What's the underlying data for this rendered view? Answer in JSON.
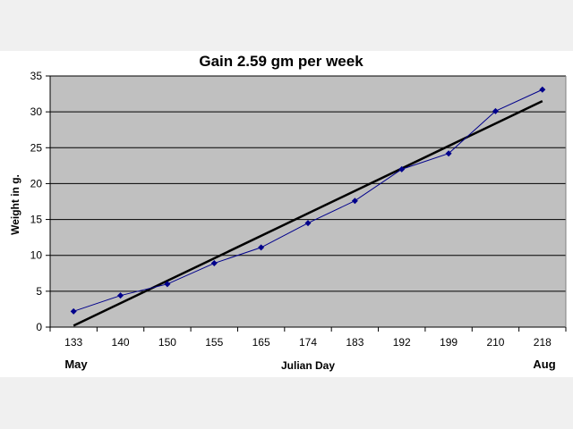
{
  "chart_data": {
    "type": "line",
    "title": "Gain 2.59 gm per week",
    "xlabel": "Julian Day",
    "ylabel": "Weight in g.",
    "categories": [
      "133",
      "140",
      "150",
      "155",
      "165",
      "174",
      "183",
      "192",
      "199",
      "210",
      "218"
    ],
    "series": [
      {
        "values": [
          2.2,
          4.4,
          6.0,
          8.9,
          11.1,
          14.5,
          17.6,
          22.0,
          24.2,
          30.1,
          33.1
        ],
        "color": "#00008b"
      }
    ],
    "trendline": {
      "start": 0.2,
      "end": 31.5,
      "color": "#000000"
    },
    "ylim": [
      0,
      35
    ],
    "yticks": [
      0,
      5,
      10,
      15,
      20,
      25,
      30,
      35
    ],
    "month_labels": {
      "start": "May",
      "end": "Aug"
    },
    "grid": true,
    "plot_background": "#c0c0c0",
    "legend": "none"
  }
}
